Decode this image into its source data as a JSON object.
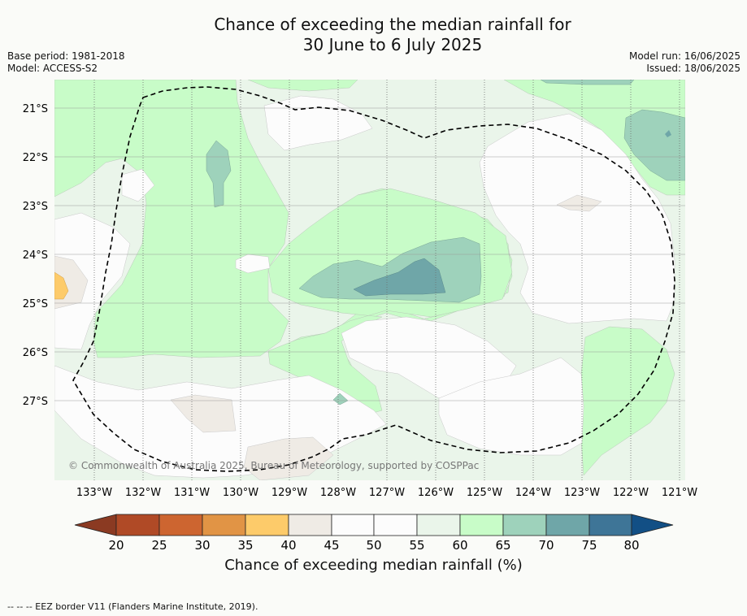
{
  "title_line1": "Chance of exceeding the median rainfall for",
  "title_line2": "30 June to 6 July 2025",
  "base_period": "Base period: 1981-2018",
  "model": "Model: ACCESS-S2",
  "model_run": "Model run: 16/06/2025",
  "issued": "Issued: 18/06/2025",
  "copyright": "© Commonwealth of Australia 2025, Bureau of Meteorology, supported by COSPPac",
  "footer": "--  --  -- EEZ border V11 (Flanders Marine Institute, 2019).",
  "colorbar_title": "Chance of exceeding median rainfall (%)",
  "map": {
    "lon_labels": [
      "133°W",
      "132°W",
      "131°W",
      "130°W",
      "129°W",
      "128°W",
      "127°W",
      "126°W",
      "125°W",
      "124°W",
      "123°W",
      "122°W",
      "121°W"
    ],
    "lat_labels": [
      "21°S",
      "22°S",
      "23°S",
      "24°S",
      "25°S",
      "26°S",
      "27°S"
    ]
  },
  "colorbar": {
    "ticks": [
      "20",
      "25",
      "30",
      "35",
      "40",
      "45",
      "50",
      "55",
      "60",
      "65",
      "70",
      "75",
      "80"
    ],
    "colors": {
      "below_20": "#8b3a22",
      "20_25": "#b04a26",
      "25_30": "#cd6530",
      "30_35": "#e19445",
      "35_40": "#fdcb6a",
      "40_45": "#efebe5",
      "45_50": "#fcfcfc",
      "50_55": "#fcfcfc",
      "55_60": "#eaf5ea",
      "60_65": "#c8fcc8",
      "65_70": "#9ed2bb",
      "70_75": "#6fa6a8",
      "75_80": "#3e7597",
      "above_80": "#124f85"
    }
  }
}
